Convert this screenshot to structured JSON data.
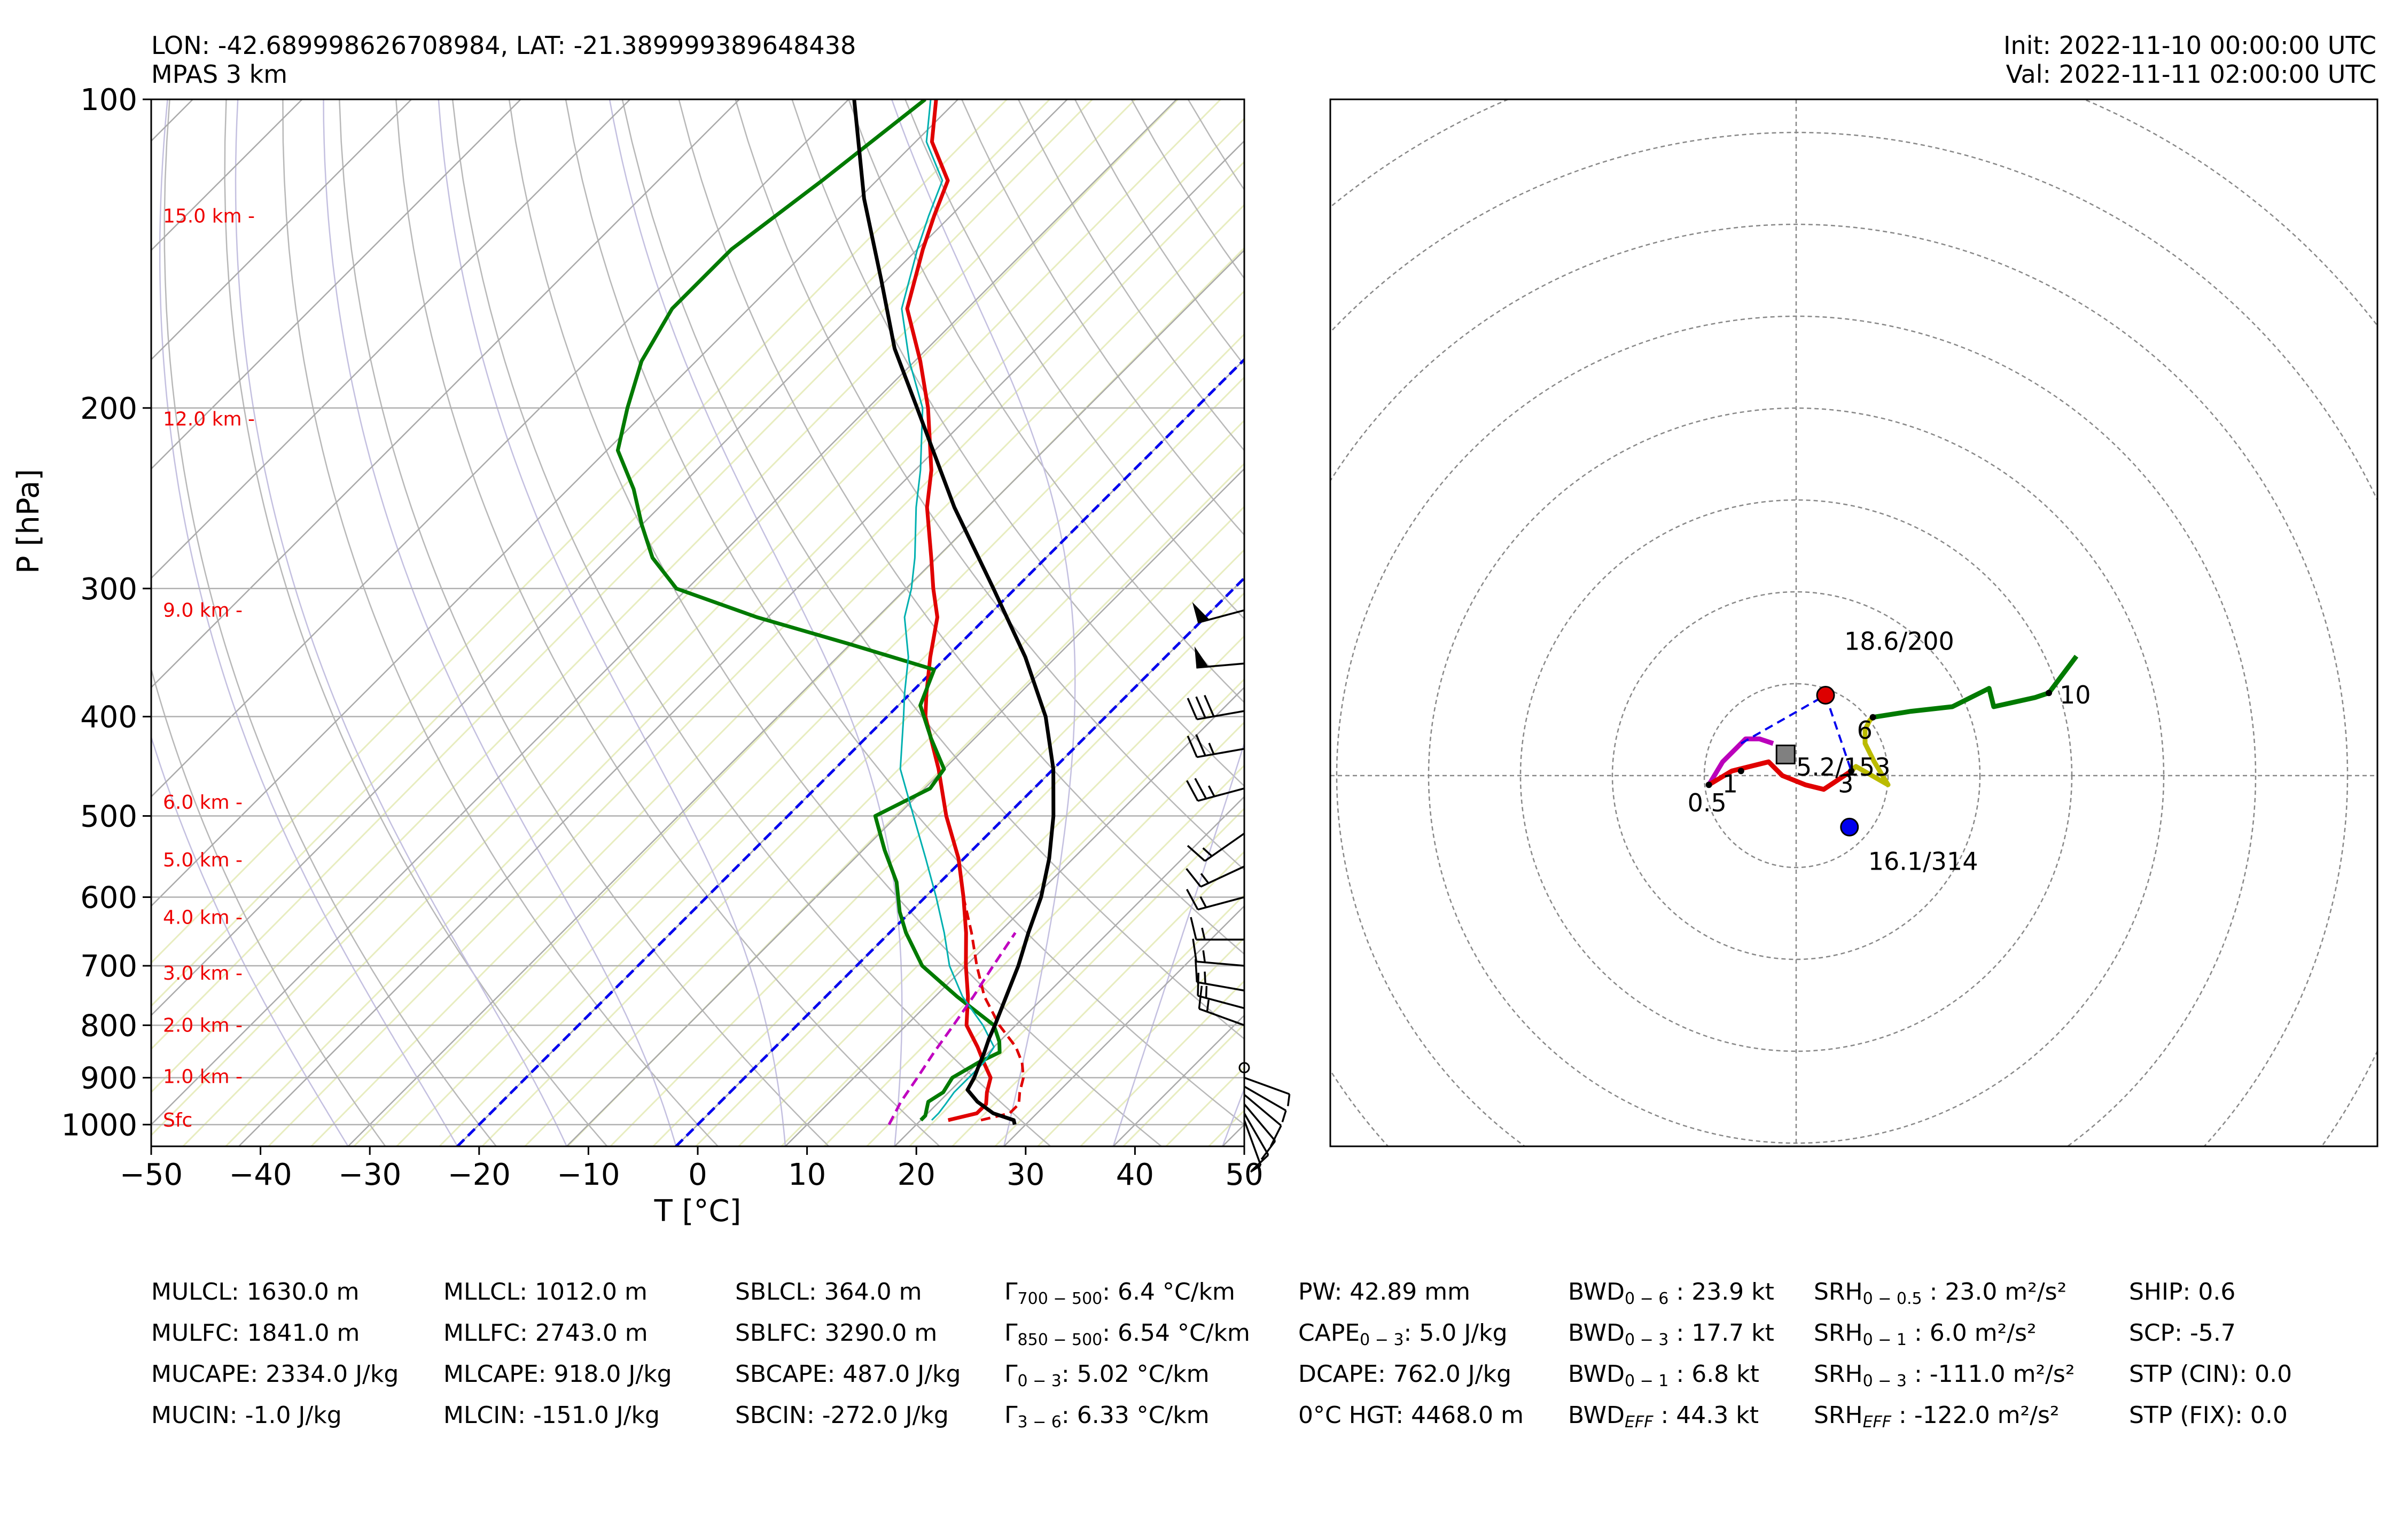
{
  "header": {
    "location": "LON: -42.689998626708984, LAT: -21.389999389648438",
    "model": "MPAS 3 km",
    "init": "Init: 2022-11-10 00:00:00 UTC",
    "valid": "Val: 2022-11-11 02:00:00 UTC"
  },
  "chart_data": [
    {
      "type": "line",
      "subtype": "skew-t log-p",
      "xlabel": "T [°C]",
      "ylabel": "P [hPa]",
      "xlim": [
        -50,
        50
      ],
      "ylim": [
        1050,
        100
      ],
      "x_ticks": [
        -50,
        -40,
        -30,
        -20,
        -10,
        0,
        10,
        20,
        30,
        40,
        50
      ],
      "y_ticks": [
        100,
        200,
        300,
        400,
        500,
        600,
        700,
        800,
        900,
        1000
      ],
      "height_labels": [
        {
          "label": "15.0 km -",
          "p": 130
        },
        {
          "label": "12.0 km -",
          "p": 205
        },
        {
          "label": "9.0 km -",
          "p": 315
        },
        {
          "label": "6.0 km -",
          "p": 485
        },
        {
          "label": "5.0 km -",
          "p": 552
        },
        {
          "label": "4.0 km -",
          "p": 628
        },
        {
          "label": "3.0 km -",
          "p": 712
        },
        {
          "label": "2.0 km -",
          "p": 800
        },
        {
          "label": "1.0 km -",
          "p": 898
        },
        {
          "label": "Sfc",
          "p": 990
        }
      ],
      "series": [
        {
          "name": "Temperature",
          "color": "#e00000",
          "p": [
            990,
            975,
            955,
            930,
            900,
            870,
            840,
            800,
            750,
            700,
            650,
            600,
            550,
            500,
            450,
            400,
            380,
            350,
            320,
            300,
            280,
            250,
            230,
            200,
            180,
            160,
            140,
            130,
            120,
            110,
            100
          ],
          "t": [
            22.5,
            24.5,
            24.5,
            23.5,
            22.5,
            20.5,
            18.5,
            15.5,
            13,
            10,
            7,
            3.5,
            -0.5,
            -5.5,
            -10.5,
            -16.5,
            -18.5,
            -21.5,
            -24.5,
            -27.5,
            -30.5,
            -35.5,
            -38.5,
            -44.5,
            -49.5,
            -55.5,
            -59.5,
            -61.5,
            -63.5,
            -68.5,
            -72
          ]
        },
        {
          "name": "Virtual temperature",
          "color": "#e00000",
          "dash": true,
          "p": [
            990,
            975,
            955,
            930,
            900,
            870,
            840,
            800,
            750,
            700,
            650,
            600,
            550,
            500,
            450,
            420
          ],
          "t": [
            25.5,
            27.5,
            27.5,
            26.5,
            25.5,
            24,
            22,
            18.5,
            14.5,
            11,
            7.5,
            3.5,
            -0.5,
            -5.5,
            -10.5,
            -14
          ]
        },
        {
          "name": "Dewpoint",
          "color": "#007a00",
          "p": [
            990,
            980,
            965,
            950,
            930,
            900,
            870,
            850,
            830,
            800,
            750,
            700,
            650,
            620,
            580,
            540,
            500,
            470,
            450,
            420,
            390,
            360,
            340,
            320,
            300,
            280,
            260,
            240,
            220,
            200,
            180,
            160,
            140,
            120,
            100
          ],
          "t": [
            20,
            20,
            19.5,
            19,
            19.5,
            19,
            20,
            21,
            20,
            18,
            12,
            6,
            1.5,
            -1,
            -4,
            -8,
            -12,
            -9.5,
            -10,
            -14,
            -18,
            -20,
            -30,
            -41,
            -51,
            -56,
            -60,
            -64,
            -69,
            -72,
            -75,
            -77,
            -77,
            -75,
            -73
          ]
        },
        {
          "name": "Wet-bulb temperature",
          "color": "#00b0b0",
          "thin": true,
          "p": [
            990,
            975,
            955,
            930,
            900,
            870,
            840,
            800,
            750,
            700,
            650,
            600,
            550,
            500,
            450,
            400,
            380,
            350,
            320,
            300,
            280,
            250,
            230,
            200,
            180,
            160,
            140,
            130,
            120,
            110,
            100
          ],
          "t": [
            21,
            21,
            20.8,
            20.5,
            20.5,
            20.5,
            20,
            17,
            12.5,
            8.5,
            5,
            1,
            -3.5,
            -8.5,
            -14,
            -18.5,
            -20.5,
            -23.5,
            -27.5,
            -29.5,
            -32,
            -36.5,
            -39.5,
            -45,
            -50.5,
            -56,
            -60,
            -62,
            -64,
            -69,
            -72.5
          ]
        },
        {
          "name": "Downdraft parcel",
          "color": "#c000c0",
          "dash": true,
          "p": [
            1000,
            950,
            900,
            850,
            800,
            750,
            700,
            650
          ],
          "t": [
            17.5,
            16.5,
            15.8,
            15,
            14.3,
            13.5,
            12.5,
            11.5
          ]
        },
        {
          "name": "Parcel profile",
          "color": "#000000",
          "p": [
            1000,
            990,
            975,
            950,
            925,
            900,
            875,
            850,
            825,
            800,
            750,
            700,
            650,
            600,
            550,
            500,
            450,
            400,
            350,
            300,
            250,
            200,
            175,
            150,
            125,
            100
          ],
          "t": [
            29,
            28.5,
            26,
            23.5,
            21.5,
            21,
            20.3,
            19.6,
            18.8,
            18.1,
            16.5,
            14.8,
            12.7,
            10.6,
            7.8,
            4.3,
            0,
            -5.5,
            -12.8,
            -22,
            -33,
            -45.5,
            -53,
            -60.5,
            -69.5,
            -79.5
          ]
        }
      ],
      "freezing_isotherms_c": [
        0,
        -20
      ],
      "wind_barbs": [
        {
          "p": 990,
          "dir": 160,
          "speed": 5
        },
        {
          "p": 975,
          "dir": 150,
          "speed": 10
        },
        {
          "p": 955,
          "dir": 140,
          "speed": 10
        },
        {
          "p": 935,
          "dir": 130,
          "speed": 10
        },
        {
          "p": 918,
          "dir": 120,
          "speed": 5
        },
        {
          "p": 900,
          "dir": 110,
          "speed": 5
        },
        {
          "p": 880,
          "dir": 200,
          "speed": 0
        },
        {
          "p": 800,
          "dir": 290,
          "speed": 15
        },
        {
          "p": 770,
          "dir": 285,
          "speed": 15
        },
        {
          "p": 740,
          "dir": 280,
          "speed": 15
        },
        {
          "p": 700,
          "dir": 275,
          "speed": 15
        },
        {
          "p": 660,
          "dir": 270,
          "speed": 15
        },
        {
          "p": 600,
          "dir": 255,
          "speed": 15
        },
        {
          "p": 560,
          "dir": 245,
          "speed": 15
        },
        {
          "p": 520,
          "dir": 235,
          "speed": 15
        },
        {
          "p": 470,
          "dir": 255,
          "speed": 25
        },
        {
          "p": 430,
          "dir": 260,
          "speed": 25
        },
        {
          "p": 395,
          "dir": 260,
          "speed": 30
        },
        {
          "p": 355,
          "dir": 265,
          "speed": 50
        },
        {
          "p": 315,
          "dir": 255,
          "speed": 50
        }
      ]
    },
    {
      "type": "scatter",
      "subtype": "hodograph",
      "ring_spacing_kt": 10,
      "rings": 8,
      "series": [
        {
          "name": "0-1 km",
          "color": "#bb00bb",
          "points": [
            [
              -19,
              -2
            ],
            [
              -16,
              3
            ],
            [
              -13,
              6
            ],
            [
              -12,
              7
            ],
            [
              -11,
              8
            ],
            [
              -8,
              8
            ],
            [
              -5,
              7
            ]
          ]
        },
        {
          "name": "0.5-3 km",
          "color": "#e00000",
          "points": [
            [
              -19,
              -2
            ],
            [
              -14,
              1
            ],
            [
              -10,
              2
            ],
            [
              -6,
              3
            ],
            [
              -3,
              0
            ],
            [
              2,
              -2
            ],
            [
              6,
              -3
            ],
            [
              9,
              -1
            ],
            [
              12,
              1
            ]
          ]
        },
        {
          "name": "3-6 km",
          "color": "#bbbb00",
          "points": [
            [
              12,
              1
            ],
            [
              13,
              2
            ],
            [
              20,
              -2
            ],
            [
              17,
              3
            ],
            [
              15,
              7
            ],
            [
              15,
              10
            ],
            [
              16,
              12
            ],
            [
              16.7,
              12.7
            ]
          ]
        },
        {
          "name": "6-10 km",
          "color": "#007a00",
          "points": [
            [
              16.7,
              12.7
            ],
            [
              25,
              14
            ],
            [
              34,
              15
            ],
            [
              42,
              19
            ],
            [
              43,
              15
            ],
            [
              52,
              17
            ],
            [
              55,
              18
            ],
            [
              61,
              26
            ]
          ]
        }
      ],
      "point_labels": [
        {
          "label": "0.5",
          "u": -19,
          "v": -2
        },
        {
          "label": "1",
          "u": -12,
          "v": 1
        },
        {
          "label": "3",
          "u": 12,
          "v": 1
        },
        {
          "label": "6",
          "u": 16.7,
          "v": 12.7
        },
        {
          "label": "10",
          "u": 55,
          "v": 18
        }
      ],
      "markers": [
        {
          "name": "Left mover",
          "label": "18.6/200",
          "u": 6.4,
          "v": 17.5,
          "color": "#dd0000"
        },
        {
          "name": "Right mover",
          "label": "16.1/314",
          "u": 11.6,
          "v": -11.2,
          "color": "#0000ee"
        },
        {
          "name": "Mean wind",
          "label": "5.2/153",
          "u": -2.3,
          "v": 4.6,
          "color": "#808080"
        }
      ]
    }
  ],
  "params": [
    [
      "MULCL: 1630.0 m",
      "MULFC: 1841.0 m",
      "MUCAPE: 2334.0 J/kg",
      "MUCIN: -1.0 J/kg"
    ],
    [
      "MLLCL: 1012.0 m",
      "MLLFC: 2743.0 m",
      "MLCAPE: 918.0 J/kg",
      "MLCIN: -151.0 J/kg"
    ],
    [
      "SBLCL: 364.0 m",
      "SBLFC: 3290.0 m",
      "SBCAPE: 487.0 J/kg",
      "SBCIN: -272.0 J/kg"
    ],
    [
      {
        "base": "Γ",
        "sub": "700 − 500",
        "text": ": 6.4 °C/km"
      },
      {
        "base": "Γ",
        "sub": "850 − 500",
        "text": ": 6.54 °C/km"
      },
      {
        "base": "Γ",
        "sub": "0 − 3",
        "text": ": 5.02 °C/km"
      },
      {
        "base": "Γ",
        "sub": "3 − 6",
        "text": ": 6.33 °C/km"
      }
    ],
    [
      {
        "base": "PW: 42.89 mm",
        "sub": "",
        "text": ""
      },
      {
        "base": "CAPE",
        "sub": "0 − 3",
        "text": ": 5.0 J/kg"
      },
      {
        "base": "DCAPE: 762.0 J/kg",
        "sub": "",
        "text": ""
      },
      {
        "base": "0°C HGT: 4468.0 m",
        "sub": "",
        "text": ""
      }
    ],
    [
      {
        "base": "BWD",
        "sub": "0 − 6",
        "text": " : 23.9 kt"
      },
      {
        "base": "BWD",
        "sub": "0 − 3",
        "text": " : 17.7 kt"
      },
      {
        "base": "BWD",
        "sub": "0 − 1",
        "text": " : 6.8 kt"
      },
      {
        "base": "BWD",
        "sub": "EFF",
        "text": " : 44.3 kt"
      }
    ],
    [
      {
        "base": "SRH",
        "sub": "0 − 0.5",
        "text": " : 23.0 m²/s²"
      },
      {
        "base": "SRH",
        "sub": "0 − 1",
        "text": " : 6.0 m²/s²"
      },
      {
        "base": "SRH",
        "sub": "0 − 3",
        "text": " : -111.0 m²/s²"
      },
      {
        "base": "SRH",
        "sub": "EFF",
        "text": " : -122.0 m²/s²"
      }
    ],
    [
      "SHIP: 0.6",
      "SCP: -5.7",
      "STP (CIN): 0.0",
      "STP (FIX): 0.0"
    ]
  ]
}
